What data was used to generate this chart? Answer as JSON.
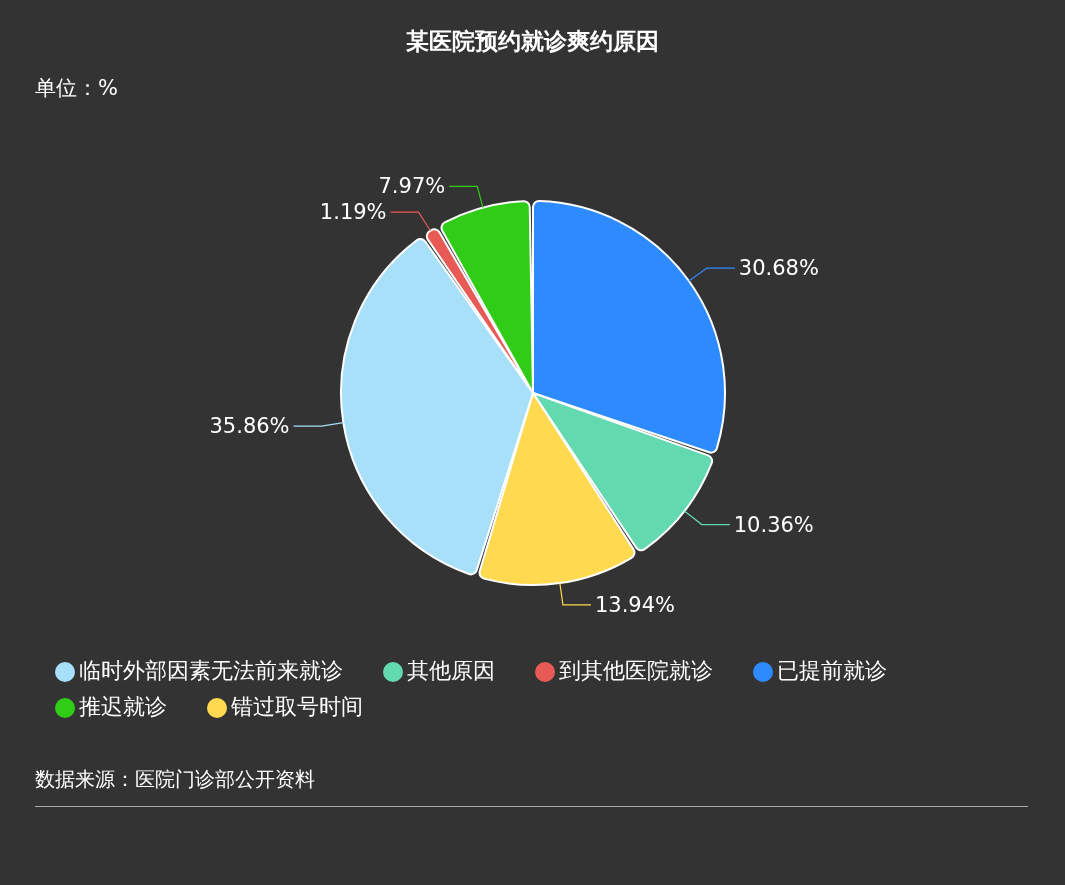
{
  "chart_data": {
    "type": "pie",
    "title": "某医院预约就诊爽约原因",
    "subtitle": "单位：%",
    "categories": [
      "已提前就诊",
      "其他原因",
      "错过取号时间",
      "临时外部因素无法前来就诊",
      "到其他医院就诊",
      "推迟就诊"
    ],
    "values": [
      30.68,
      10.36,
      13.94,
      35.86,
      1.19,
      7.97
    ],
    "colors": [
      "#2e8bff",
      "#63d9b0",
      "#ffd94f",
      "#a8dff9",
      "#e85a55",
      "#30cc18"
    ],
    "value_labels": [
      "30.68%",
      "10.36%",
      "13.94%",
      "35.86%",
      "1.19%",
      "7.97%"
    ],
    "legend": "bottom",
    "annotations": [
      "数据来源：医院门诊部公开资料"
    ]
  }
}
